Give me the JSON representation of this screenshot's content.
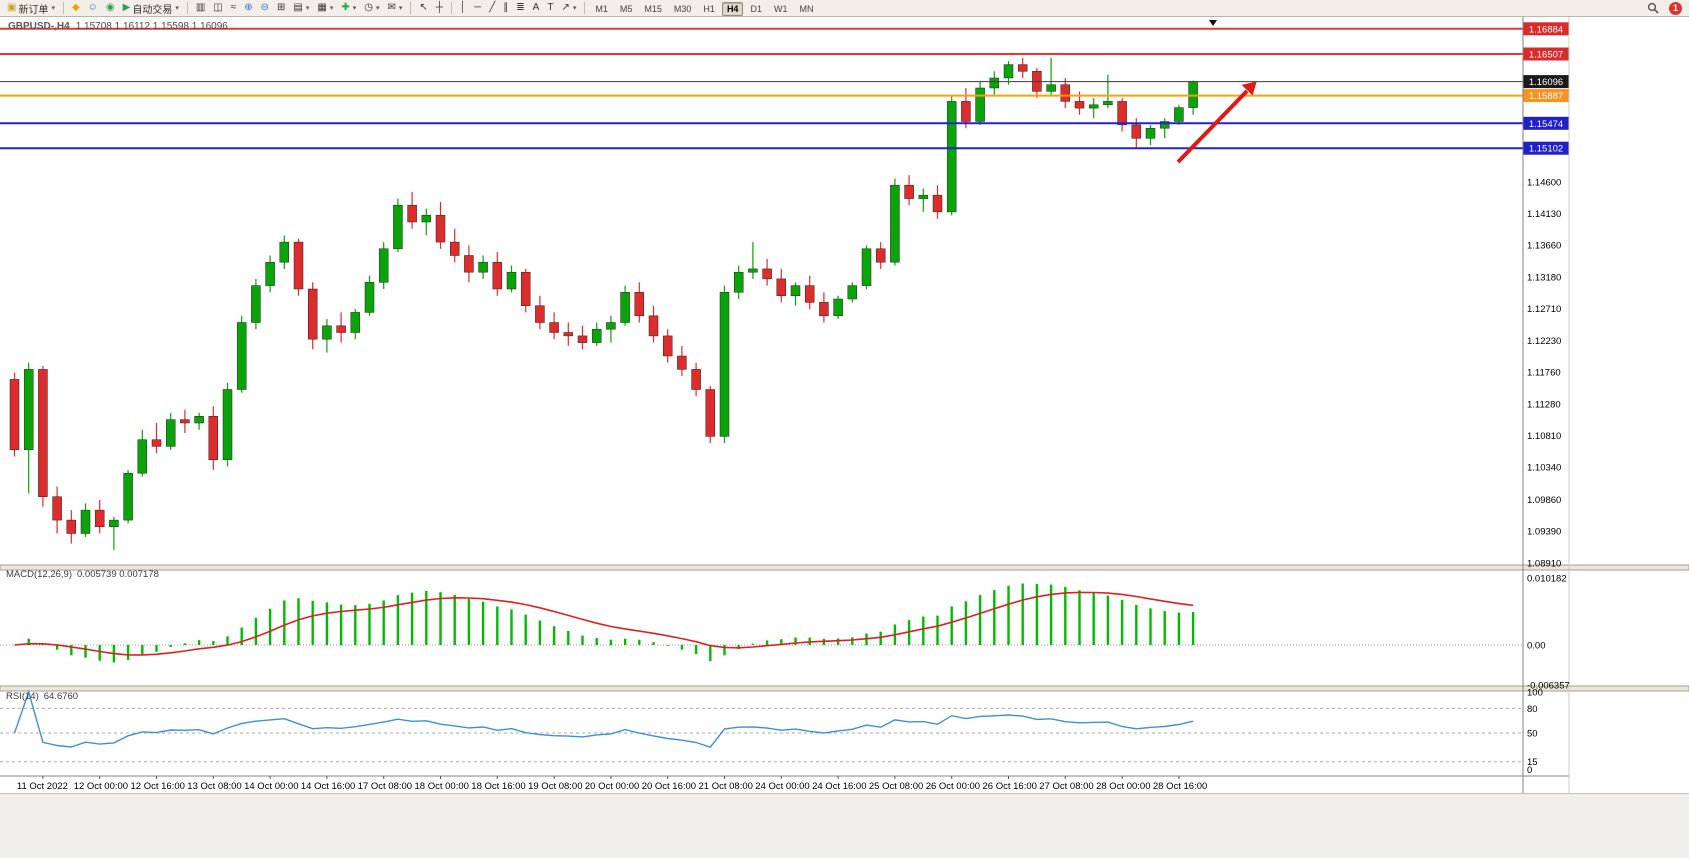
{
  "toolbar": {
    "new_order": "新订单",
    "autotrading": "自动交易",
    "timeframes": [
      "M1",
      "M5",
      "M15",
      "M30",
      "H1",
      "H4",
      "D1",
      "W1",
      "MN"
    ],
    "active_timeframe": "H4",
    "badge": "1"
  },
  "chart": {
    "title": "GBPUSD-,H4",
    "ohlc": "1.15708 1.16112 1.15598 1.16096",
    "colors": {
      "up": "#0aa30a",
      "down": "#dd2c2c",
      "outline": "#222222",
      "macd_hist": "#00bb00",
      "macd_signal": "#e02020",
      "rsi_line": "#3f8fd8",
      "axis_text": "#000000",
      "separator_fill": "#e9e7df",
      "separator_edge": "#a29f92",
      "arrow": "#e01818"
    },
    "price_axis_labels": [
      {
        "label": "1.14600",
        "value": 1.146
      },
      {
        "label": "1.14130",
        "value": 1.1413
      },
      {
        "label": "1.13660",
        "value": 1.1366
      },
      {
        "label": "1.13180",
        "value": 1.1318
      },
      {
        "label": "1.12710",
        "value": 1.1271
      },
      {
        "label": "1.12230",
        "value": 1.1223
      },
      {
        "label": "1.11760",
        "value": 1.1176
      },
      {
        "label": "1.11280",
        "value": 1.1128
      },
      {
        "label": "1.10810",
        "value": 1.1081
      },
      {
        "label": "1.10340",
        "value": 1.1034
      },
      {
        "label": "1.09860",
        "value": 1.0986
      },
      {
        "label": "1.09390",
        "value": 1.0939
      },
      {
        "label": "1.08910",
        "value": 1.0891
      }
    ],
    "hlines": [
      {
        "name": "resistance-1",
        "price": 1.16884,
        "color": "#e53935",
        "width": 2
      },
      {
        "name": "resistance-2",
        "price": 1.16507,
        "color": "#e53935",
        "width": 2
      },
      {
        "name": "current-price-line",
        "price": 1.16096,
        "color": "#3a3a3a",
        "width": 1
      },
      {
        "name": "pivot-orange",
        "price": 1.15887,
        "color": "#ffa000",
        "width": 2
      },
      {
        "name": "support-1",
        "price": 1.15474,
        "color": "#2323cc",
        "width": 2
      },
      {
        "name": "support-2",
        "price": 1.15102,
        "color": "#2323cc",
        "width": 2
      }
    ],
    "price_tags": [
      {
        "label": "1.16884",
        "value": 1.16884,
        "bg": "#d92b2b",
        "fg": "#ffffff"
      },
      {
        "label": "1.16507",
        "value": 1.16507,
        "bg": "#d92b2b",
        "fg": "#ffffff"
      },
      {
        "label": "1.16096",
        "value": 1.16096,
        "bg": "#1a1a1a",
        "fg": "#ffffff"
      },
      {
        "label": "1.15887",
        "value": 1.15887,
        "bg": "#f7931e",
        "fg": "#ffffff"
      },
      {
        "label": "1.15474",
        "value": 1.15474,
        "bg": "#2020c8",
        "fg": "#ffffff"
      },
      {
        "label": "1.15102",
        "value": 1.15102,
        "bg": "#2020c8",
        "fg": "#ffffff"
      }
    ],
    "time_labels": [
      "11 Oct 2022",
      "12 Oct 00:00",
      "12 Oct 16:00",
      "13 Oct 08:00",
      "14 Oct 00:00",
      "14 Oct 16:00",
      "17 Oct 08:00",
      "18 Oct 00:00",
      "18 Oct 16:00",
      "19 Oct 08:00",
      "20 Oct 00:00",
      "20 Oct 16:00",
      "21 Oct 08:00",
      "24 Oct 00:00",
      "24 Oct 16:00",
      "25 Oct 08:00",
      "26 Oct 00:00",
      "26 Oct 16:00",
      "27 Oct 08:00",
      "28 Oct 00:00",
      "28 Oct 16:00"
    ]
  },
  "macd": {
    "label": "MACD(12,26,9)",
    "values": "0.005739 0.007178",
    "fast": 12,
    "slow": 26,
    "signal": 9,
    "axis": [
      {
        "label": "0.010182",
        "value": 0.010182
      },
      {
        "label": "0.00",
        "value": 0
      },
      {
        "label": "-0.006357",
        "value": -0.006357
      }
    ]
  },
  "rsi": {
    "label": "RSI(14)",
    "value": "64.6760",
    "period": 14,
    "levels": [
      80,
      50,
      15
    ],
    "axis": [
      {
        "label": "100",
        "value": 100
      },
      {
        "label": "80",
        "value": 80
      },
      {
        "label": "50",
        "value": 50
      },
      {
        "label": "15",
        "value": 15
      },
      {
        "label": "0",
        "value": 0
      }
    ]
  },
  "chart_data": {
    "type": "candlestick",
    "symbol": "GBPUSD",
    "timeframe": "H4",
    "title": "GBPUSD-,H4",
    "price_range": [
      1.0888,
      1.1706
    ],
    "macd_range": [
      -0.006357,
      0.010182
    ],
    "rsi_range": [
      0,
      100
    ],
    "label_start_index": 2,
    "label_every": 4,
    "candles": [
      [
        1.1165,
        1.1175,
        1.105,
        1.106
      ],
      [
        1.106,
        1.119,
        1.0995,
        1.118
      ],
      [
        1.118,
        1.1185,
        1.0975,
        1.099
      ],
      [
        1.099,
        1.1005,
        1.0935,
        1.0955
      ],
      [
        1.0955,
        1.097,
        1.092,
        1.0935
      ],
      [
        1.0935,
        1.098,
        1.093,
        1.097
      ],
      [
        1.097,
        1.0985,
        1.0935,
        1.0945
      ],
      [
        1.0945,
        1.096,
        1.091,
        1.0955
      ],
      [
        1.0955,
        1.103,
        1.095,
        1.1025
      ],
      [
        1.1025,
        1.109,
        1.102,
        1.1075
      ],
      [
        1.1075,
        1.11,
        1.1055,
        1.1065
      ],
      [
        1.1065,
        1.1115,
        1.106,
        1.1105
      ],
      [
        1.1105,
        1.112,
        1.1085,
        1.11
      ],
      [
        1.11,
        1.1115,
        1.109,
        1.111
      ],
      [
        1.111,
        1.1125,
        1.103,
        1.1045
      ],
      [
        1.1045,
        1.116,
        1.1035,
        1.115
      ],
      [
        1.115,
        1.126,
        1.1145,
        1.125
      ],
      [
        1.125,
        1.1315,
        1.124,
        1.1305
      ],
      [
        1.1305,
        1.135,
        1.1295,
        1.134
      ],
      [
        1.134,
        1.138,
        1.133,
        1.137
      ],
      [
        1.137,
        1.1375,
        1.129,
        1.13
      ],
      [
        1.13,
        1.131,
        1.121,
        1.1225
      ],
      [
        1.1225,
        1.1255,
        1.1205,
        1.1245
      ],
      [
        1.1245,
        1.1265,
        1.122,
        1.1235
      ],
      [
        1.1235,
        1.127,
        1.1225,
        1.1265
      ],
      [
        1.1265,
        1.132,
        1.126,
        1.131
      ],
      [
        1.131,
        1.137,
        1.13,
        1.136
      ],
      [
        1.136,
        1.1435,
        1.1355,
        1.1425
      ],
      [
        1.1425,
        1.1445,
        1.139,
        1.14
      ],
      [
        1.14,
        1.142,
        1.138,
        1.141
      ],
      [
        1.141,
        1.143,
        1.136,
        1.137
      ],
      [
        1.137,
        1.139,
        1.134,
        1.135
      ],
      [
        1.135,
        1.1365,
        1.131,
        1.1325
      ],
      [
        1.1325,
        1.135,
        1.1315,
        1.134
      ],
      [
        1.134,
        1.1355,
        1.129,
        1.13
      ],
      [
        1.13,
        1.1335,
        1.1295,
        1.1325
      ],
      [
        1.1325,
        1.133,
        1.1265,
        1.1275
      ],
      [
        1.1275,
        1.129,
        1.124,
        1.125
      ],
      [
        1.125,
        1.1265,
        1.1225,
        1.1235
      ],
      [
        1.1235,
        1.125,
        1.1215,
        1.123
      ],
      [
        1.123,
        1.1245,
        1.121,
        1.122
      ],
      [
        1.122,
        1.125,
        1.1215,
        1.124
      ],
      [
        1.124,
        1.126,
        1.122,
        1.125
      ],
      [
        1.125,
        1.1305,
        1.1245,
        1.1295
      ],
      [
        1.1295,
        1.131,
        1.125,
        1.126
      ],
      [
        1.126,
        1.1275,
        1.122,
        1.123
      ],
      [
        1.123,
        1.124,
        1.119,
        1.12
      ],
      [
        1.12,
        1.1215,
        1.117,
        1.118
      ],
      [
        1.118,
        1.119,
        1.114,
        1.115
      ],
      [
        1.115,
        1.1155,
        1.107,
        1.108
      ],
      [
        1.108,
        1.1305,
        1.107,
        1.1295
      ],
      [
        1.1295,
        1.1335,
        1.1285,
        1.1325
      ],
      [
        1.1325,
        1.137,
        1.1315,
        1.133
      ],
      [
        1.133,
        1.1345,
        1.1305,
        1.1315
      ],
      [
        1.1315,
        1.133,
        1.128,
        1.129
      ],
      [
        1.129,
        1.131,
        1.1275,
        1.1305
      ],
      [
        1.1305,
        1.132,
        1.127,
        1.128
      ],
      [
        1.128,
        1.1295,
        1.125,
        1.126
      ],
      [
        1.126,
        1.129,
        1.1255,
        1.1285
      ],
      [
        1.1285,
        1.131,
        1.128,
        1.1305
      ],
      [
        1.1305,
        1.1365,
        1.13,
        1.136
      ],
      [
        1.136,
        1.137,
        1.133,
        1.134
      ],
      [
        1.134,
        1.1465,
        1.1335,
        1.1455
      ],
      [
        1.1455,
        1.147,
        1.1425,
        1.1435
      ],
      [
        1.1435,
        1.145,
        1.1415,
        1.144
      ],
      [
        1.144,
        1.1455,
        1.1405,
        1.1415
      ],
      [
        1.1415,
        1.159,
        1.141,
        1.158
      ],
      [
        1.158,
        1.16,
        1.154,
        1.155
      ],
      [
        1.155,
        1.161,
        1.1545,
        1.16
      ],
      [
        1.16,
        1.1625,
        1.159,
        1.1615
      ],
      [
        1.1615,
        1.164,
        1.1605,
        1.1635
      ],
      [
        1.1635,
        1.1645,
        1.1615,
        1.1625
      ],
      [
        1.1625,
        1.163,
        1.1585,
        1.1595
      ],
      [
        1.1595,
        1.1645,
        1.159,
        1.1605
      ],
      [
        1.1605,
        1.1615,
        1.157,
        1.158
      ],
      [
        1.158,
        1.1595,
        1.156,
        1.157
      ],
      [
        1.157,
        1.1585,
        1.1555,
        1.1575
      ],
      [
        1.1575,
        1.162,
        1.157,
        1.158
      ],
      [
        1.158,
        1.1585,
        1.1535,
        1.1545
      ],
      [
        1.1545,
        1.1555,
        1.151,
        1.1525
      ],
      [
        1.1525,
        1.1545,
        1.1515,
        1.154
      ],
      [
        1.154,
        1.1555,
        1.1525,
        1.155
      ],
      [
        1.155,
        1.1575,
        1.1545,
        1.15708
      ],
      [
        1.15708,
        1.16112,
        1.15598,
        1.16096
      ]
    ]
  }
}
